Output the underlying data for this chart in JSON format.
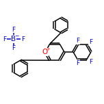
{
  "bg_color": "#ffffff",
  "bond_color": "#000000",
  "atom_colors": {
    "O": "#ff0000",
    "F": "#0000cc",
    "B": "#0000cc",
    "C": "#000000"
  },
  "line_width": 1.1,
  "font_size": 6.5,
  "fig_size": [
    1.52,
    1.52
  ],
  "dpi": 100
}
